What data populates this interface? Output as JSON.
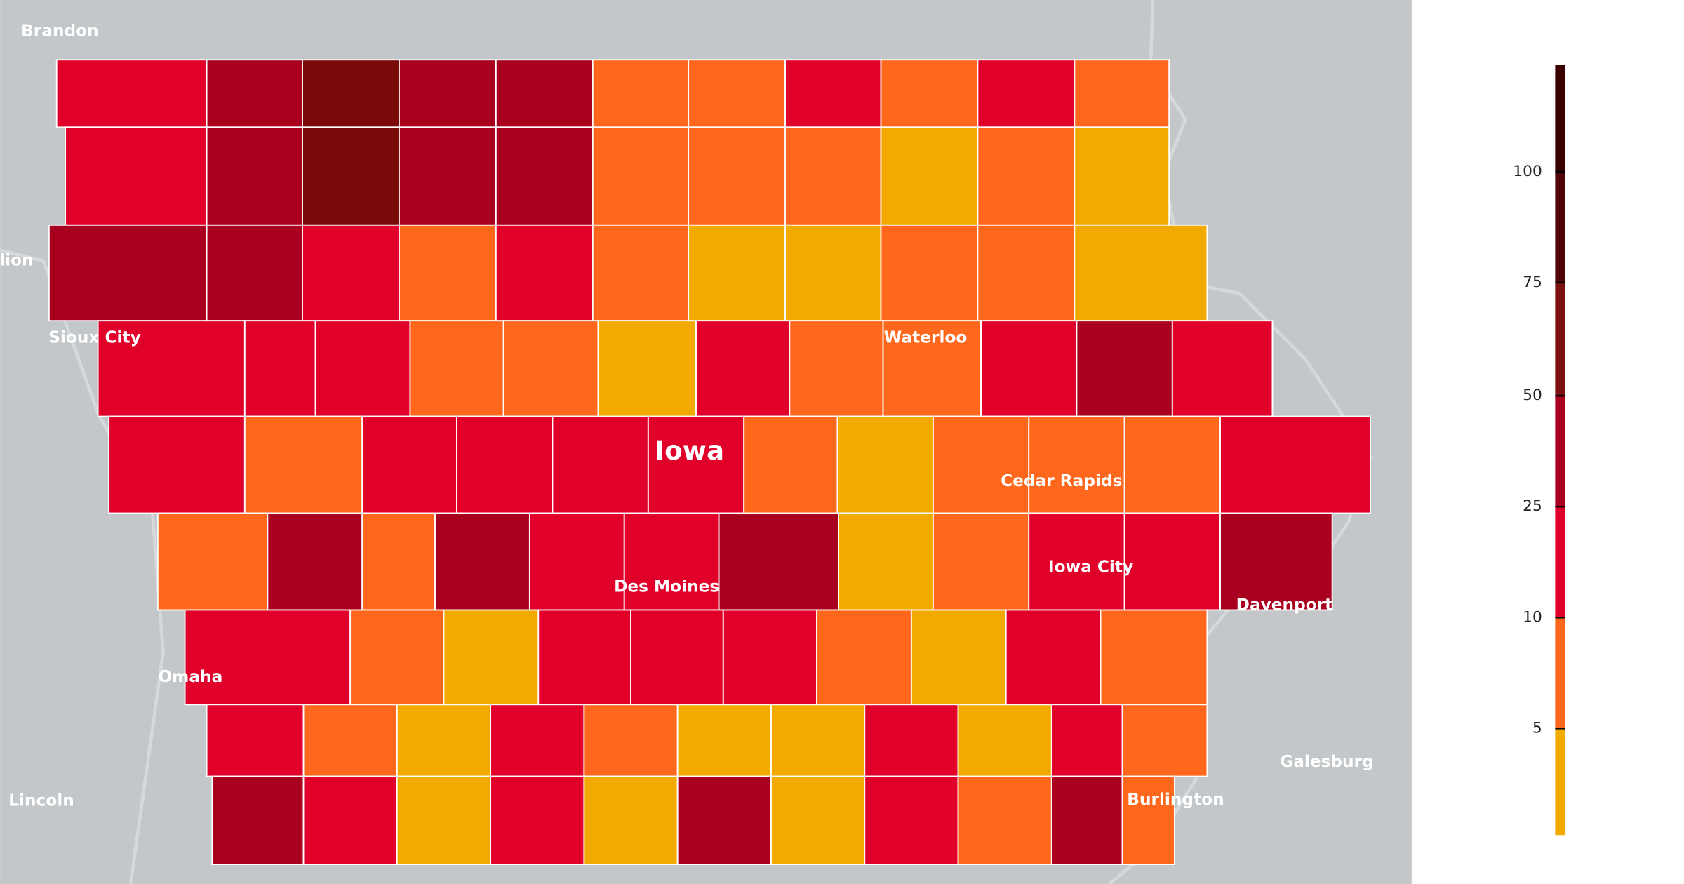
{
  "map": {
    "state_label": "Iowa",
    "place_labels": [
      "Brandon",
      "lion",
      "Sioux City",
      "Waterloo",
      "Cedar Rapids",
      "Iowa City",
      "Des Moines",
      "Davenport",
      "Omaha",
      "Galesburg",
      "Lincoln",
      "Burlington"
    ],
    "county_rows": [
      [
        "#e0002a",
        "#a8001e",
        "#7a0a0a",
        "#a8001e",
        "#a8001e",
        "#ff671d",
        "#ff671d",
        "#e0002a",
        "#ff671d",
        "#e0002a",
        "#ff671d"
      ],
      [
        "#e0002a",
        "#a8001e",
        "#7a0a0a",
        "#a8001e",
        "#a8001e",
        "#ff671d",
        "#ff671d",
        "#ff671d",
        "#f2a900",
        "#ff671d",
        "#f2a900"
      ],
      [
        "#a8001e",
        "#a8001e",
        "#e0002a",
        "#ff671d",
        "#e0002a",
        "#ff671d",
        "#f2a900",
        "#f2a900",
        "#ff671d",
        "#ff671d",
        "#f2a900"
      ],
      [
        "#e0002a",
        "#e0002a",
        "#e0002a",
        "#ff671d",
        "#ff671d",
        "#f2a900",
        "#e0002a",
        "#ff671d",
        "#ff671d",
        "#e0002a",
        "#a8001e",
        "#e0002a"
      ],
      [
        "#e0002a",
        "#ff671d",
        "#e0002a",
        "#e0002a",
        "#e0002a",
        "#e0002a",
        "#ff671d",
        "#f2a900",
        "#ff671d",
        "#ff671d",
        "#ff671d",
        "#e0002a"
      ],
      [
        "#ff671d",
        "#a8001e",
        "#ff671d",
        "#a8001e",
        "#e0002a",
        "#e0002a",
        "#a8001e",
        "#f2a900",
        "#ff671d",
        "#e0002a",
        "#e0002a",
        "#a8001e"
      ],
      [
        "#e0002a",
        "#ff671d",
        "#f2a900",
        "#e0002a",
        "#e0002a",
        "#e0002a",
        "#ff671d",
        "#f2a900",
        "#e0002a",
        "#ff671d"
      ],
      [
        "#e0002a",
        "#ff671d",
        "#f2a900",
        "#e0002a",
        "#ff671d",
        "#f2a900",
        "#f2a900",
        "#e0002a",
        "#f2a900",
        "#e0002a",
        "#ff671d"
      ],
      [
        "#a8001e",
        "#e0002a",
        "#f2a900",
        "#e0002a",
        "#f2a900",
        "#a8001e",
        "#f2a900",
        "#e0002a",
        "#ff671d",
        "#a8001e",
        "#ff671d"
      ]
    ],
    "legend": {
      "ticks": [
        100,
        75,
        50,
        25,
        10,
        5
      ],
      "colors": [
        "#3a0000",
        "#4f0505",
        "#7a1010",
        "#a8001e",
        "#e0002a",
        "#ff671d",
        "#f2a900"
      ]
    }
  }
}
